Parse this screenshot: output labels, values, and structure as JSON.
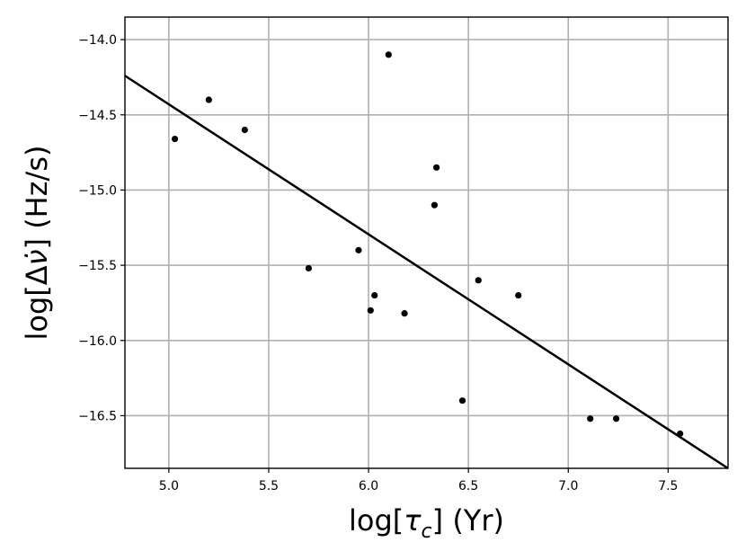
{
  "chart_data": {
    "type": "scatter",
    "xlabel": "log[τc] (Yr)",
    "xlabel_parts": {
      "main": "log[",
      "greek": "τ",
      "sub": "c",
      "rest": "] (Yr)"
    },
    "ylabel": "log[Δν̇] (Hz/s)",
    "ylabel_parts": {
      "main": "log[Δ",
      "greek": "ν̇",
      "rest": "] (Hz/s)"
    },
    "xlim": [
      4.78,
      7.8
    ],
    "ylim": [
      -16.85,
      -13.85
    ],
    "xticks": [
      5.0,
      5.5,
      6.0,
      6.5,
      7.0,
      7.5
    ],
    "xtick_labels": [
      "5.0",
      "5.5",
      "6.0",
      "6.5",
      "7.0",
      "7.5"
    ],
    "yticks": [
      -14.0,
      -14.5,
      -15.0,
      -15.5,
      -16.0,
      -16.5
    ],
    "ytick_labels": [
      "−14.0",
      "−14.5",
      "−15.0",
      "−15.5",
      "−16.0",
      "−16.5"
    ],
    "grid": true,
    "points": [
      {
        "x": 5.03,
        "y": -14.66
      },
      {
        "x": 5.2,
        "y": -14.4
      },
      {
        "x": 5.38,
        "y": -14.6
      },
      {
        "x": 5.7,
        "y": -15.52
      },
      {
        "x": 5.95,
        "y": -15.4
      },
      {
        "x": 6.01,
        "y": -15.8
      },
      {
        "x": 6.03,
        "y": -15.7
      },
      {
        "x": 6.1,
        "y": -14.1
      },
      {
        "x": 6.18,
        "y": -15.82
      },
      {
        "x": 6.33,
        "y": -15.1
      },
      {
        "x": 6.34,
        "y": -14.85
      },
      {
        "x": 6.47,
        "y": -16.4
      },
      {
        "x": 6.55,
        "y": -15.6
      },
      {
        "x": 6.75,
        "y": -15.7
      },
      {
        "x": 7.11,
        "y": -16.52
      },
      {
        "x": 7.24,
        "y": -16.52
      },
      {
        "x": 7.56,
        "y": -16.62
      }
    ],
    "fit_line": {
      "x": [
        4.78,
        7.8
      ],
      "y": [
        -14.24,
        -16.85
      ]
    }
  }
}
